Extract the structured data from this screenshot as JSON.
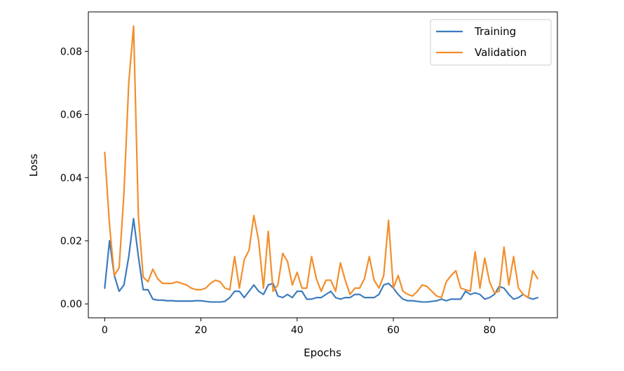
{
  "chart_data": {
    "type": "line",
    "title": "",
    "xlabel": "Epochs",
    "ylabel": "Loss",
    "xlim": [
      -3.4,
      94.1
    ],
    "ylim": [
      -0.0044,
      0.0925
    ],
    "xticks": [
      0,
      20,
      40,
      60,
      80
    ],
    "xtick_labels": [
      "0",
      "20",
      "40",
      "60",
      "80"
    ],
    "yticks": [
      0.0,
      0.02,
      0.04,
      0.06,
      0.08
    ],
    "ytick_labels": [
      "0.00",
      "0.02",
      "0.04",
      "0.06",
      "0.08"
    ],
    "grid": false,
    "legend": "top-right",
    "series": [
      {
        "name": "Training",
        "color": "#3b7bbf",
        "x": [
          0,
          1,
          2,
          3,
          4,
          5,
          6,
          7,
          8,
          9,
          10,
          11,
          12,
          13,
          14,
          15,
          16,
          17,
          18,
          19,
          20,
          21,
          22,
          23,
          24,
          25,
          26,
          27,
          28,
          29,
          30,
          31,
          32,
          33,
          34,
          35,
          36,
          37,
          38,
          39,
          40,
          41,
          42,
          43,
          44,
          45,
          46,
          47,
          48,
          49,
          50,
          51,
          52,
          53,
          54,
          55,
          56,
          57,
          58,
          59,
          60,
          61,
          62,
          63,
          64,
          65,
          66,
          67,
          68,
          69,
          70,
          71,
          72,
          73,
          74,
          75,
          76,
          77,
          78,
          79,
          80,
          81,
          82,
          83,
          84,
          85,
          86,
          87,
          88,
          89,
          90
        ],
        "values": [
          0.005,
          0.02,
          0.009,
          0.004,
          0.006,
          0.015,
          0.027,
          0.015,
          0.0045,
          0.0045,
          0.0015,
          0.0012,
          0.0012,
          0.001,
          0.001,
          0.0009,
          0.0009,
          0.0009,
          0.0009,
          0.001,
          0.001,
          0.0008,
          0.0006,
          0.0006,
          0.0006,
          0.0008,
          0.002,
          0.004,
          0.004,
          0.002,
          0.004,
          0.006,
          0.004,
          0.003,
          0.006,
          0.0065,
          0.0025,
          0.002,
          0.003,
          0.002,
          0.004,
          0.004,
          0.0015,
          0.0015,
          0.002,
          0.002,
          0.003,
          0.004,
          0.002,
          0.0015,
          0.002,
          0.002,
          0.003,
          0.003,
          0.002,
          0.002,
          0.002,
          0.003,
          0.006,
          0.0065,
          0.005,
          0.003,
          0.0015,
          0.001,
          0.001,
          0.0008,
          0.0006,
          0.0006,
          0.0008,
          0.001,
          0.0015,
          0.001,
          0.0015,
          0.0015,
          0.0015,
          0.004,
          0.003,
          0.0035,
          0.003,
          0.0015,
          0.002,
          0.003,
          0.0055,
          0.005,
          0.003,
          0.0015,
          0.002,
          0.003,
          0.002,
          0.0015,
          0.002
        ]
      },
      {
        "name": "Validation",
        "color": "#f28e2b",
        "x": [
          0,
          1,
          2,
          3,
          4,
          5,
          6,
          7,
          8,
          9,
          10,
          11,
          12,
          13,
          14,
          15,
          16,
          17,
          18,
          19,
          20,
          21,
          22,
          23,
          24,
          25,
          26,
          27,
          28,
          29,
          30,
          31,
          32,
          33,
          34,
          35,
          36,
          37,
          38,
          39,
          40,
          41,
          42,
          43,
          44,
          45,
          46,
          47,
          48,
          49,
          50,
          51,
          52,
          53,
          54,
          55,
          56,
          57,
          58,
          59,
          60,
          61,
          62,
          63,
          64,
          65,
          66,
          67,
          68,
          69,
          70,
          71,
          72,
          73,
          74,
          75,
          76,
          77,
          78,
          79,
          80,
          81,
          82,
          83,
          84,
          85,
          86,
          87,
          88,
          89,
          90
        ],
        "values": [
          0.048,
          0.025,
          0.009,
          0.0115,
          0.035,
          0.07,
          0.088,
          0.028,
          0.0085,
          0.007,
          0.011,
          0.008,
          0.0065,
          0.0065,
          0.0065,
          0.007,
          0.0065,
          0.006,
          0.005,
          0.0045,
          0.0045,
          0.005,
          0.0065,
          0.0075,
          0.007,
          0.005,
          0.0045,
          0.015,
          0.005,
          0.014,
          0.017,
          0.028,
          0.02,
          0.005,
          0.023,
          0.004,
          0.006,
          0.016,
          0.0135,
          0.006,
          0.01,
          0.005,
          0.005,
          0.015,
          0.008,
          0.004,
          0.0075,
          0.0075,
          0.004,
          0.013,
          0.0075,
          0.003,
          0.005,
          0.005,
          0.008,
          0.015,
          0.0075,
          0.005,
          0.009,
          0.0265,
          0.005,
          0.009,
          0.004,
          0.003,
          0.0025,
          0.004,
          0.006,
          0.0055,
          0.004,
          0.0025,
          0.002,
          0.007,
          0.009,
          0.0105,
          0.005,
          0.0045,
          0.004,
          0.0165,
          0.005,
          0.0145,
          0.007,
          0.0035,
          0.004,
          0.018,
          0.006,
          0.015,
          0.005,
          0.003,
          0.002,
          0.0105,
          0.008
        ]
      }
    ]
  }
}
